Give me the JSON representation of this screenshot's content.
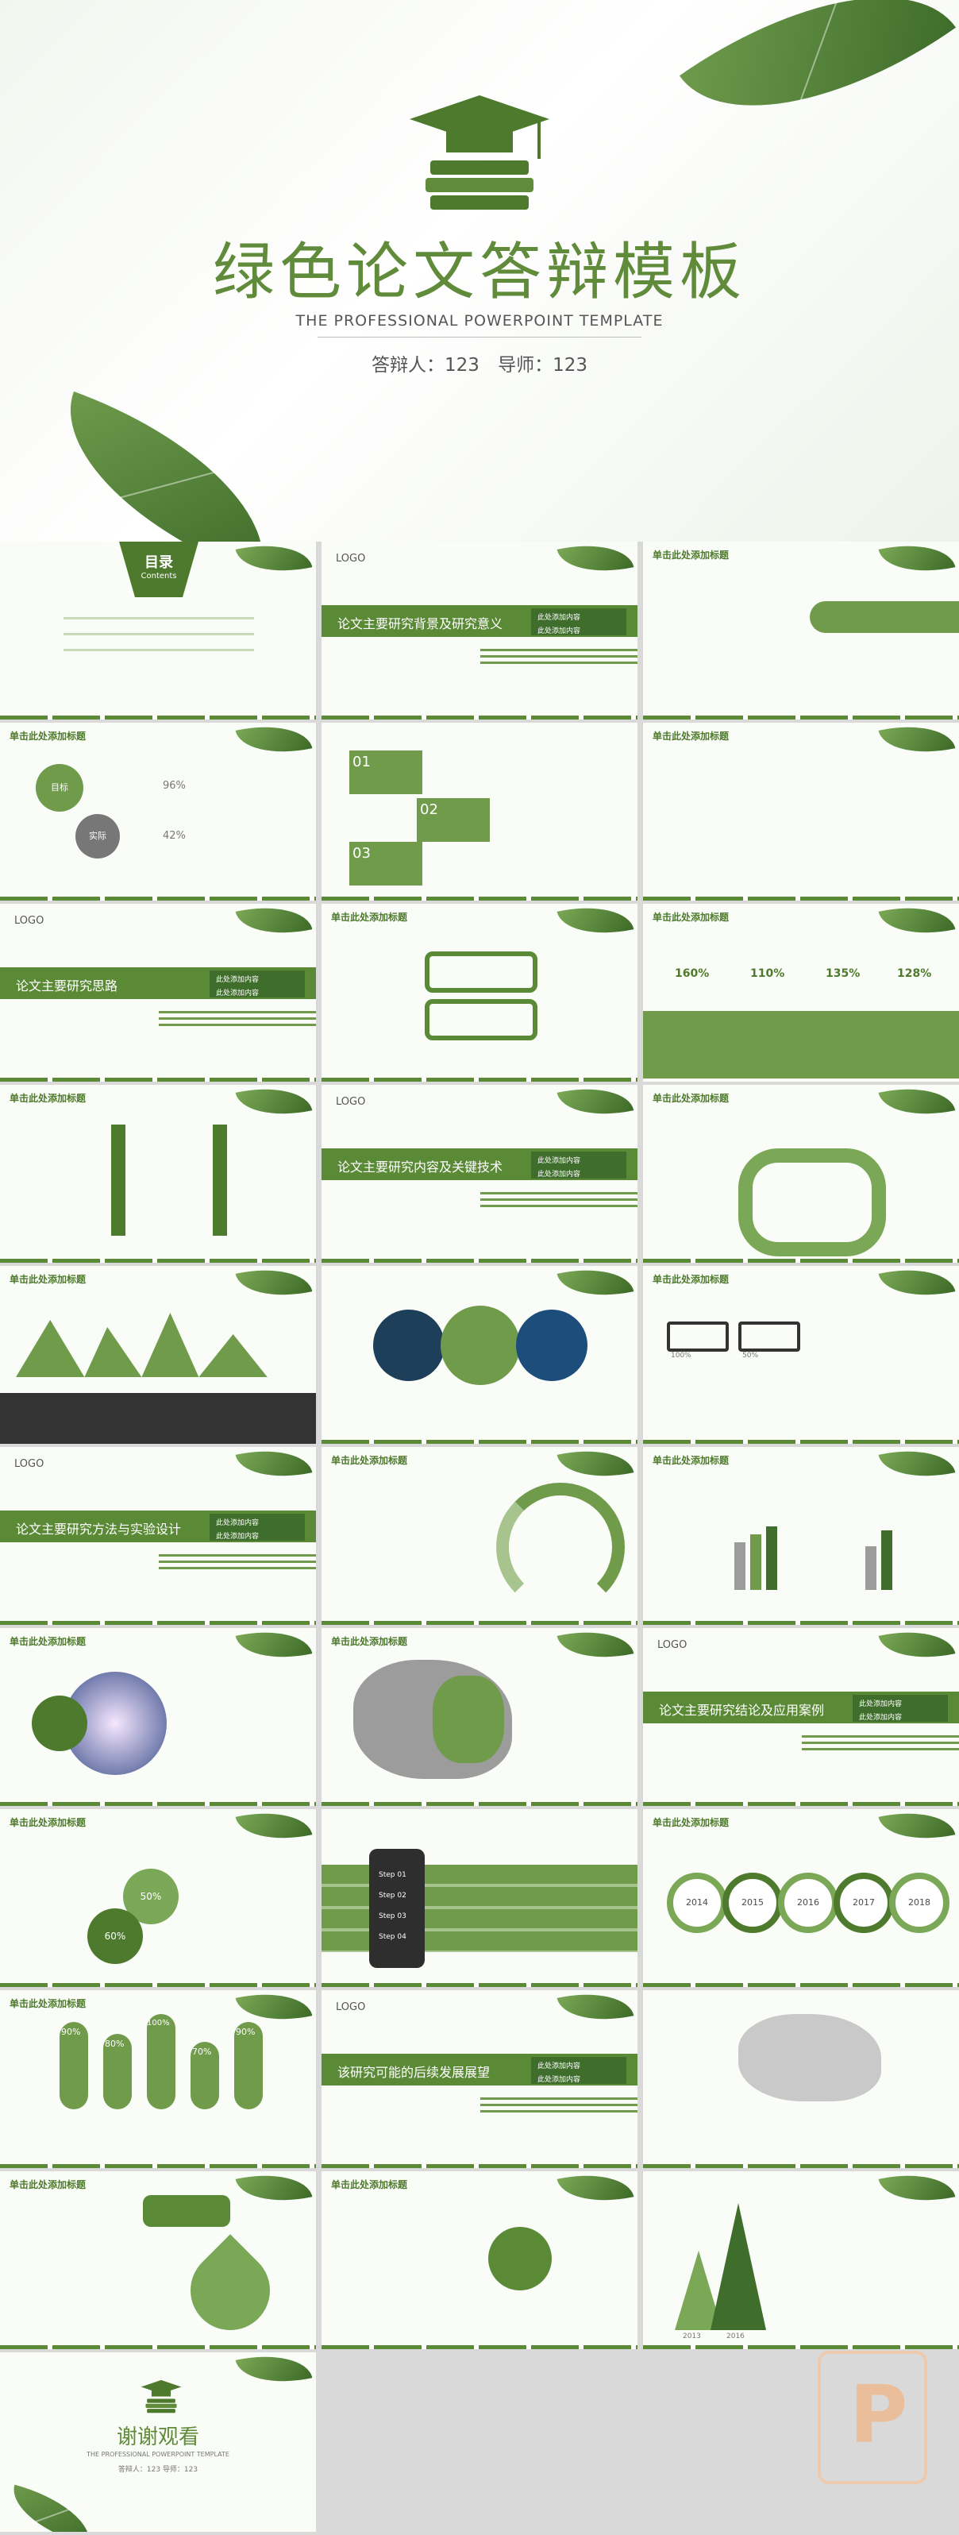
{
  "cover": {
    "title": "绿色论文答辩模板",
    "subtitle": "THE PROFESSIONAL POWERPOINT TEMPLATE",
    "defender": "答辩人：123",
    "advisor": "导师：123"
  },
  "slides": {
    "toc_title": "目录",
    "toc_sub": "Contents",
    "click_title": "单击此处添加标题",
    "logo": "LOGO",
    "band_tag_1": "此处添加内容",
    "band_tag_2": "此处添加内容",
    "sec_background": "论文主要研究背景及研究意义",
    "sec_idea": "论文主要研究思路",
    "sec_content": "论文主要研究内容及关键技术",
    "sec_method": "论文主要研究方法与实验设计",
    "sec_conclusion": "论文主要研究结论及应用案例",
    "sec_future": "该研究可能的后续发展展望",
    "goal": "目标",
    "actual": "实际",
    "pct_96": "96%",
    "pct_42": "42%",
    "n01": "01",
    "n02": "02",
    "n03": "03",
    "p160": "160%",
    "p110": "110%",
    "p135": "135%",
    "p128": "128%",
    "p100": "100%",
    "p50": "50%",
    "p90": "90%",
    "p80": "80%",
    "p70": "70%",
    "p60": "60%",
    "y2014": "2014",
    "y2015": "2015",
    "y2016": "2016",
    "y2017": "2017",
    "y2018": "2018",
    "y2013": "2013",
    "step1": "Step 01",
    "step2": "Step 02",
    "step3": "Step 03",
    "step4": "Step 04",
    "add_title": "添加标题",
    "thanks": "谢谢观看",
    "thanks_sub": "THE PROFESSIONAL POWERPOINT TEMPLATE",
    "thanks_meta": "答辩人：123 导师：123"
  },
  "colors": {
    "accent": "#5b8a37",
    "dark": "#3f6d2b",
    "light": "#8db36a"
  }
}
